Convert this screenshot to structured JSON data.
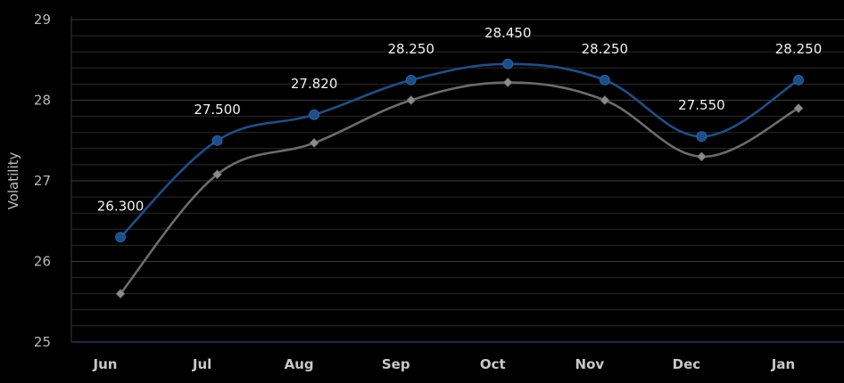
{
  "chart_data": {
    "type": "line",
    "categories": [
      "Jun",
      "Jul",
      "Aug",
      "Sep",
      "Oct",
      "Nov",
      "Dec",
      "Jan"
    ],
    "series": [
      {
        "values": [
          26.3,
          27.5,
          27.82,
          28.25,
          28.45,
          28.25,
          27.55,
          28.25
        ],
        "data_labels": [
          "26.300",
          "27.500",
          "27.820",
          "28.250",
          "28.450",
          "28.250",
          "27.550",
          "28.250"
        ],
        "color": "#1c4f8a",
        "marker": "circle"
      },
      {
        "values": [
          25.6,
          27.08,
          27.47,
          28.0,
          28.22,
          28.0,
          27.3,
          27.9
        ],
        "color": "#6b6b6b",
        "marker": "diamond"
      }
    ],
    "ylabel": "Volatility",
    "ylim": [
      25,
      29
    ],
    "yticks": [
      "25",
      "26",
      "27",
      "28",
      "29"
    ],
    "grid": true,
    "background": "#000000",
    "gridline_color": "#2a2a2a",
    "axis_line_color": "#1a2a4a"
  }
}
